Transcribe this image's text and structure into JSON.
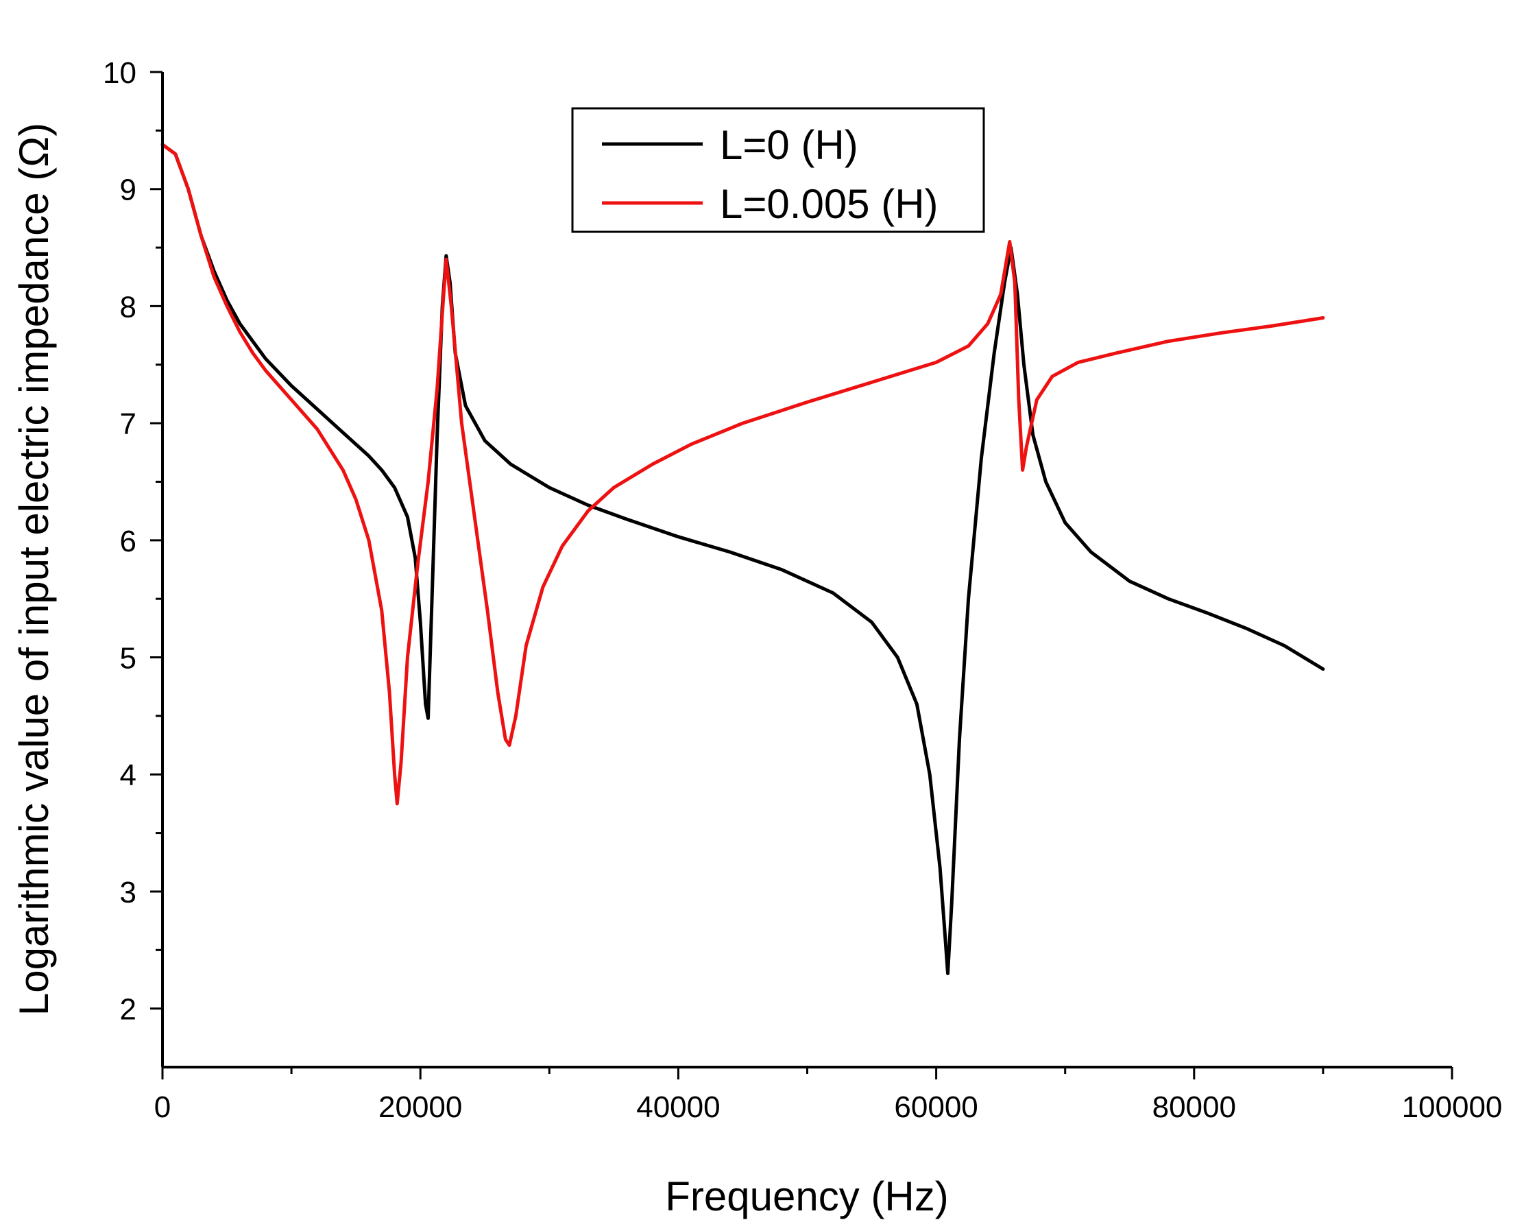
{
  "chart_data": {
    "type": "line",
    "xlabel": "Frequency (Hz)",
    "ylabel": "Logarithmic value of input electric impedance (Ω)",
    "xlim": [
      0,
      100000
    ],
    "ylim": [
      1.5,
      10
    ],
    "xticks": [
      0,
      20000,
      40000,
      60000,
      80000,
      100000
    ],
    "xtick_labels": [
      "0",
      "20000",
      "40000",
      "60000",
      "80000",
      "100000"
    ],
    "yticks": [
      2,
      3,
      4,
      5,
      6,
      7,
      8,
      9,
      10
    ],
    "ytick_labels": [
      "2",
      "3",
      "4",
      "5",
      "6",
      "7",
      "8",
      "9",
      "10"
    ],
    "grid": false,
    "legend_position": "top-center",
    "series": [
      {
        "name": "L=0 (H)",
        "color": "#000000",
        "points": [
          [
            0,
            9.38
          ],
          [
            1000,
            9.3
          ],
          [
            2000,
            9.0
          ],
          [
            3000,
            8.6
          ],
          [
            4000,
            8.3
          ],
          [
            5000,
            8.05
          ],
          [
            6000,
            7.85
          ],
          [
            7000,
            7.7
          ],
          [
            8000,
            7.55
          ],
          [
            10000,
            7.32
          ],
          [
            12000,
            7.12
          ],
          [
            14000,
            6.92
          ],
          [
            16000,
            6.72
          ],
          [
            17000,
            6.6
          ],
          [
            18000,
            6.45
          ],
          [
            19000,
            6.2
          ],
          [
            19600,
            5.85
          ],
          [
            20000,
            5.3
          ],
          [
            20400,
            4.6
          ],
          [
            20600,
            4.48
          ],
          [
            20900,
            5.5
          ],
          [
            21300,
            6.9
          ],
          [
            21700,
            8.0
          ],
          [
            22000,
            8.43
          ],
          [
            22300,
            8.2
          ],
          [
            22700,
            7.6
          ],
          [
            23500,
            7.15
          ],
          [
            25000,
            6.85
          ],
          [
            27000,
            6.65
          ],
          [
            30000,
            6.45
          ],
          [
            33000,
            6.3
          ],
          [
            36000,
            6.18
          ],
          [
            40000,
            6.03
          ],
          [
            44000,
            5.9
          ],
          [
            48000,
            5.75
          ],
          [
            52000,
            5.55
          ],
          [
            55000,
            5.3
          ],
          [
            57000,
            5.0
          ],
          [
            58500,
            4.6
          ],
          [
            59500,
            4.0
          ],
          [
            60300,
            3.2
          ],
          [
            60700,
            2.6
          ],
          [
            60900,
            2.3
          ],
          [
            61200,
            2.9
          ],
          [
            61800,
            4.3
          ],
          [
            62500,
            5.5
          ],
          [
            63500,
            6.7
          ],
          [
            64500,
            7.6
          ],
          [
            65300,
            8.2
          ],
          [
            65800,
            8.5
          ],
          [
            66300,
            8.1
          ],
          [
            66800,
            7.5
          ],
          [
            67500,
            6.9
          ],
          [
            68500,
            6.5
          ],
          [
            70000,
            6.15
          ],
          [
            72000,
            5.9
          ],
          [
            75000,
            5.65
          ],
          [
            78000,
            5.5
          ],
          [
            81000,
            5.38
          ],
          [
            84000,
            5.25
          ],
          [
            87000,
            5.1
          ],
          [
            90000,
            4.9
          ]
        ]
      },
      {
        "name": "L=0.005 (H)",
        "color": "#ee1111",
        "points": [
          [
            0,
            9.38
          ],
          [
            1000,
            9.3
          ],
          [
            2000,
            9.0
          ],
          [
            3000,
            8.6
          ],
          [
            4000,
            8.25
          ],
          [
            5000,
            8.0
          ],
          [
            6000,
            7.78
          ],
          [
            7000,
            7.6
          ],
          [
            8000,
            7.45
          ],
          [
            10000,
            7.2
          ],
          [
            12000,
            6.95
          ],
          [
            14000,
            6.6
          ],
          [
            15000,
            6.35
          ],
          [
            16000,
            6.0
          ],
          [
            17000,
            5.4
          ],
          [
            17600,
            4.7
          ],
          [
            18000,
            4.0
          ],
          [
            18200,
            3.75
          ],
          [
            18500,
            4.1
          ],
          [
            19000,
            5.0
          ],
          [
            19800,
            5.8
          ],
          [
            20600,
            6.5
          ],
          [
            21300,
            7.3
          ],
          [
            21800,
            8.1
          ],
          [
            22000,
            8.4
          ],
          [
            22400,
            8.0
          ],
          [
            23200,
            7.0
          ],
          [
            24200,
            6.2
          ],
          [
            25200,
            5.4
          ],
          [
            26000,
            4.7
          ],
          [
            26600,
            4.3
          ],
          [
            26900,
            4.25
          ],
          [
            27400,
            4.5
          ],
          [
            28200,
            5.1
          ],
          [
            29500,
            5.6
          ],
          [
            31000,
            5.95
          ],
          [
            33000,
            6.25
          ],
          [
            35000,
            6.45
          ],
          [
            38000,
            6.65
          ],
          [
            41000,
            6.82
          ],
          [
            45000,
            7.0
          ],
          [
            50000,
            7.18
          ],
          [
            55000,
            7.35
          ],
          [
            60000,
            7.52
          ],
          [
            62500,
            7.66
          ],
          [
            64000,
            7.85
          ],
          [
            65000,
            8.1
          ],
          [
            65700,
            8.55
          ],
          [
            66100,
            8.2
          ],
          [
            66400,
            7.2
          ],
          [
            66700,
            6.6
          ],
          [
            67000,
            6.8
          ],
          [
            67800,
            7.2
          ],
          [
            69000,
            7.4
          ],
          [
            71000,
            7.52
          ],
          [
            74000,
            7.6
          ],
          [
            78000,
            7.7
          ],
          [
            82000,
            7.77
          ],
          [
            86000,
            7.83
          ],
          [
            90000,
            7.9
          ]
        ]
      }
    ]
  }
}
